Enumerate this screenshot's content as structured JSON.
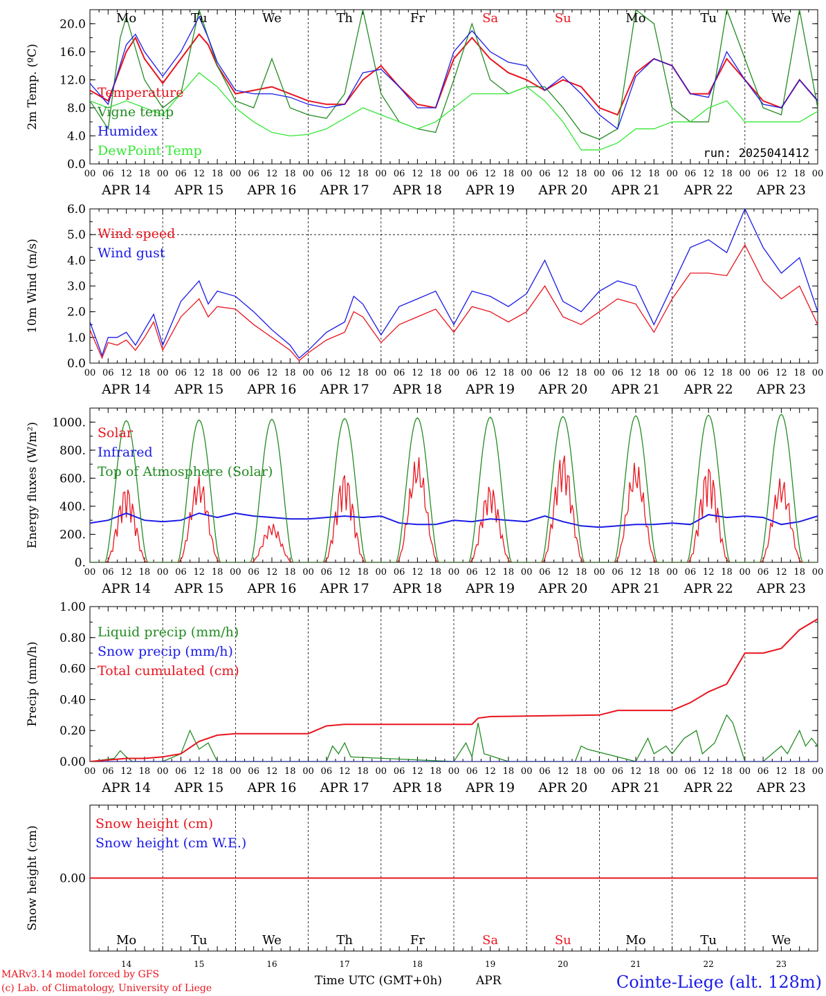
{
  "colors": {
    "red": "#e8141e",
    "blue": "#1a1ae6",
    "dgreen": "#228b22",
    "lgreen": "#33e833",
    "black": "#000000"
  },
  "days": [
    "Mo",
    "Tu",
    "We",
    "Th",
    "Fr",
    "Sa",
    "Su",
    "Mo",
    "Tu",
    "We"
  ],
  "day_colors": [
    "#000000",
    "#000000",
    "#000000",
    "#000000",
    "#000000",
    "#e8141e",
    "#e8141e",
    "#000000",
    "#000000",
    "#000000"
  ],
  "date_labels": [
    "APR 14",
    "APR 15",
    "APR 16",
    "APR 17",
    "APR 18",
    "APR 19",
    "APR 20",
    "APR 21",
    "APR 22",
    "APR 23"
  ],
  "day_numbers": [
    "14",
    "15",
    "16",
    "17",
    "18",
    "19",
    "20",
    "21",
    "22",
    "23"
  ],
  "hour_labels": [
    "00",
    "06",
    "12",
    "18"
  ],
  "footer": {
    "model": "MARv3.14 model forced by GFS",
    "lab": "(c) Lab. of Climatology, University of Liege",
    "xlabel": "Time UTC (GMT+0h)",
    "month": "APR",
    "station": "Cointe-Liege (alt. 128m)"
  },
  "chart_data": [
    {
      "type": "line",
      "ylabel": "2m Temp. (ºC)",
      "ylim": [
        0,
        22
      ],
      "yticks": [
        "0.0",
        "4.0",
        "8.0",
        "12.0",
        "16.0",
        "20.0"
      ],
      "ytick_values": [
        0,
        4,
        8,
        12,
        16,
        20
      ],
      "annotation": "run: 2025041412",
      "x_unit": "hours since APR 14 00 UTC",
      "series": [
        {
          "name": "Temperature",
          "color": "#e8141e",
          "x": [
            0,
            6,
            12,
            15,
            18,
            24,
            30,
            36,
            39,
            42,
            48,
            54,
            60,
            66,
            72,
            78,
            84,
            90,
            96,
            102,
            108,
            114,
            120,
            126,
            132,
            138,
            144,
            150,
            156,
            162,
            168,
            174,
            180,
            186,
            192,
            198,
            204,
            210,
            216,
            222,
            228,
            234,
            240
          ],
          "y": [
            10.5,
            9,
            16,
            18,
            15,
            11.5,
            15,
            18.5,
            17,
            14,
            10,
            10.5,
            11,
            10,
            9,
            8.5,
            8.5,
            12,
            14,
            11,
            8.5,
            8,
            15,
            18,
            15,
            13,
            12,
            10.5,
            12,
            11,
            8,
            7,
            13,
            15,
            14,
            10,
            10,
            15,
            12,
            9,
            8,
            12,
            9
          ]
        },
        {
          "name": "Vigne temp",
          "color": "#228b22",
          "x": [
            0,
            6,
            10,
            12,
            18,
            24,
            30,
            36,
            42,
            48,
            54,
            60,
            66,
            72,
            78,
            84,
            90,
            96,
            102,
            108,
            114,
            120,
            126,
            132,
            138,
            144,
            150,
            156,
            162,
            168,
            174,
            180,
            186,
            192,
            198,
            204,
            210,
            216,
            222,
            228,
            234,
            240
          ],
          "y": [
            9,
            5,
            18,
            21,
            12,
            8,
            10,
            22,
            14,
            9,
            8,
            15,
            8,
            7,
            6.5,
            10,
            22,
            10,
            6,
            5,
            4.5,
            12,
            20,
            12,
            10,
            11,
            11,
            8,
            4.5,
            3.5,
            5,
            22,
            20,
            8,
            6,
            6,
            22,
            15,
            8,
            7,
            22,
            8
          ]
        },
        {
          "name": "Humidex",
          "color": "#1a1ae6",
          "x": [
            0,
            6,
            12,
            15,
            18,
            24,
            30,
            36,
            39,
            42,
            48,
            54,
            60,
            66,
            72,
            78,
            84,
            90,
            96,
            102,
            108,
            114,
            120,
            126,
            132,
            138,
            144,
            150,
            156,
            162,
            168,
            174,
            180,
            186,
            192,
            198,
            204,
            210,
            216,
            222,
            228,
            234,
            240
          ],
          "y": [
            11.5,
            8.5,
            17,
            18.5,
            16,
            12.5,
            16,
            21,
            18,
            14.5,
            10.5,
            10,
            10,
            9.5,
            8.5,
            8,
            8.5,
            13,
            13.5,
            11,
            8,
            8,
            16,
            19,
            16,
            14.5,
            14,
            10.5,
            12.5,
            10,
            7,
            5,
            12.5,
            15,
            14,
            10,
            9.5,
            16,
            12,
            8.5,
            8,
            12,
            9
          ]
        },
        {
          "name": "DewPoint Temp",
          "color": "#33e833",
          "x": [
            0,
            6,
            12,
            18,
            24,
            30,
            36,
            42,
            48,
            54,
            60,
            66,
            72,
            78,
            84,
            90,
            96,
            102,
            108,
            114,
            120,
            126,
            132,
            138,
            144,
            150,
            156,
            162,
            168,
            174,
            180,
            186,
            192,
            198,
            204,
            210,
            216,
            222,
            228,
            234,
            240
          ],
          "y": [
            9,
            8,
            9,
            8,
            7,
            10,
            13,
            11,
            8,
            6,
            4.5,
            4,
            4.2,
            5,
            6.5,
            8,
            7,
            6,
            5,
            6,
            8,
            10,
            10,
            10,
            11,
            9,
            6,
            2,
            2,
            3,
            5,
            5,
            6,
            6,
            8,
            9,
            6,
            6,
            6,
            6,
            7.5
          ]
        }
      ]
    },
    {
      "type": "line",
      "ylabel": "10m Wind (m/s)",
      "ylim": [
        0,
        6
      ],
      "yticks": [
        "0.0",
        "1.0",
        "2.0",
        "3.0",
        "4.0",
        "5.0",
        "6.0"
      ],
      "ytick_values": [
        0,
        1,
        2,
        3,
        4,
        5,
        6
      ],
      "reference_line": 5,
      "series": [
        {
          "name": "Wind speed",
          "color": "#e8141e",
          "x": [
            0,
            4,
            6,
            9,
            12,
            15,
            18,
            21,
            24,
            30,
            36,
            39,
            42,
            48,
            54,
            60,
            66,
            69,
            72,
            78,
            84,
            87,
            90,
            96,
            102,
            108,
            114,
            120,
            126,
            132,
            138,
            144,
            150,
            156,
            162,
            168,
            174,
            180,
            186,
            192,
            198,
            204,
            210,
            216,
            222,
            228,
            234,
            240
          ],
          "y": [
            1.3,
            0.2,
            0.8,
            0.7,
            0.9,
            0.5,
            1.0,
            1.6,
            0.5,
            1.8,
            2.5,
            1.8,
            2.2,
            2.1,
            1.5,
            1.0,
            0.5,
            0.1,
            0.4,
            0.9,
            1.2,
            2.0,
            1.8,
            0.8,
            1.5,
            1.8,
            2.1,
            1.2,
            2.2,
            2.0,
            1.6,
            2.0,
            3.0,
            1.8,
            1.5,
            2.0,
            2.5,
            2.3,
            1.2,
            2.5,
            3.5,
            3.5,
            3.4,
            4.6,
            3.2,
            2.5,
            3.0,
            1.5
          ]
        },
        {
          "name": "Wind gust",
          "color": "#1a1ae6",
          "x": [
            0,
            4,
            6,
            9,
            12,
            15,
            18,
            21,
            24,
            30,
            36,
            39,
            42,
            48,
            54,
            60,
            66,
            69,
            72,
            78,
            84,
            87,
            90,
            96,
            102,
            108,
            114,
            120,
            126,
            132,
            138,
            144,
            150,
            156,
            162,
            168,
            174,
            180,
            186,
            192,
            198,
            204,
            210,
            216,
            222,
            228,
            234,
            240
          ],
          "y": [
            1.6,
            0.3,
            1.0,
            1.0,
            1.2,
            0.7,
            1.3,
            1.9,
            0.7,
            2.4,
            3.2,
            2.3,
            2.8,
            2.6,
            2.0,
            1.3,
            0.7,
            0.2,
            0.5,
            1.2,
            1.6,
            2.6,
            2.3,
            1.1,
            2.2,
            2.5,
            2.8,
            1.5,
            2.8,
            2.6,
            2.2,
            2.7,
            4.0,
            2.4,
            2.0,
            2.8,
            3.2,
            3.0,
            1.5,
            3.0,
            4.5,
            4.8,
            4.3,
            6.0,
            4.5,
            3.5,
            4.1,
            2.0
          ]
        }
      ]
    },
    {
      "type": "line",
      "ylabel": "Energy fluxes (W/m²)",
      "ylim": [
        0,
        1100
      ],
      "yticks": [
        "0.",
        "200.",
        "400.",
        "600.",
        "800.",
        "1000."
      ],
      "ytick_values": [
        0,
        200,
        400,
        600,
        800,
        1000
      ],
      "series": [
        {
          "name": "Solar",
          "color": "#e8141e",
          "peaks": [
            550,
            620,
            280,
            650,
            760,
            560,
            790,
            720,
            700,
            610
          ]
        },
        {
          "name": "Infrared",
          "color": "#1a1ae6",
          "x": [
            0,
            6,
            12,
            18,
            24,
            30,
            36,
            42,
            48,
            54,
            60,
            66,
            72,
            78,
            84,
            90,
            96,
            102,
            108,
            114,
            120,
            126,
            132,
            138,
            144,
            150,
            156,
            162,
            168,
            174,
            180,
            186,
            192,
            198,
            204,
            210,
            216,
            222,
            228,
            234,
            240
          ],
          "y": [
            280,
            300,
            350,
            300,
            290,
            300,
            350,
            320,
            350,
            330,
            320,
            310,
            310,
            320,
            330,
            320,
            330,
            280,
            270,
            270,
            300,
            290,
            310,
            300,
            290,
            330,
            290,
            260,
            250,
            260,
            270,
            270,
            280,
            270,
            340,
            320,
            330,
            320,
            270,
            290,
            330
          ]
        },
        {
          "name": "Top of Atmosphere (Solar)",
          "color": "#228b22",
          "peaks": [
            1010,
            1015,
            1020,
            1025,
            1030,
            1035,
            1040,
            1045,
            1050,
            1055
          ]
        }
      ]
    },
    {
      "type": "line",
      "ylabel": "Precip (mm/h)",
      "ylim": [
        0,
        1.0
      ],
      "yticks": [
        "0.00",
        "0.20",
        "0.40",
        "0.60",
        "0.80",
        "1.00"
      ],
      "ytick_values": [
        0,
        0.2,
        0.4,
        0.6,
        0.8,
        1.0
      ],
      "series": [
        {
          "name": "Liquid precip (mm/h)",
          "color": "#228b22",
          "x": [
            0,
            8,
            10,
            12,
            14,
            24,
            30,
            33,
            36,
            39,
            42,
            48,
            78,
            80,
            82,
            84,
            86,
            120,
            124,
            126,
            128,
            130,
            138,
            160,
            162,
            164,
            180,
            184,
            186,
            190,
            192,
            196,
            200,
            202,
            206,
            210,
            212,
            216,
            222,
            228,
            230,
            234,
            236,
            238,
            240
          ],
          "y": [
            0,
            0.02,
            0.07,
            0.03,
            0,
            0,
            0.05,
            0.2,
            0.08,
            0.12,
            0,
            0,
            0,
            0.1,
            0.05,
            0.12,
            0.03,
            0,
            0.12,
            0.03,
            0.25,
            0.05,
            0,
            0,
            0.1,
            0.08,
            0,
            0.15,
            0.05,
            0.1,
            0.05,
            0.15,
            0.2,
            0.05,
            0.12,
            0.3,
            0.25,
            0,
            0,
            0.1,
            0.05,
            0.2,
            0.1,
            0.15,
            0.1
          ]
        },
        {
          "name": "Snow precip (mm/h)",
          "color": "#1a1ae6",
          "x": [
            0,
            240
          ],
          "y": [
            0,
            0
          ]
        },
        {
          "name": "Total cumulated (cm)",
          "color": "#e8141e",
          "x": [
            0,
            6,
            12,
            18,
            24,
            30,
            36,
            42,
            48,
            72,
            78,
            84,
            126,
            128,
            132,
            168,
            174,
            192,
            198,
            204,
            210,
            216,
            222,
            228,
            234,
            240
          ],
          "y": [
            0,
            0.01,
            0.02,
            0.02,
            0.03,
            0.05,
            0.13,
            0.17,
            0.18,
            0.18,
            0.23,
            0.24,
            0.24,
            0.28,
            0.29,
            0.3,
            0.33,
            0.33,
            0.38,
            0.45,
            0.5,
            0.7,
            0.7,
            0.73,
            0.85,
            0.92
          ]
        }
      ]
    },
    {
      "type": "line",
      "ylabel": "Snow height (cm)",
      "ylim": [
        -1,
        1
      ],
      "yticks": [
        "0.00"
      ],
      "ytick_values": [
        0
      ],
      "series": [
        {
          "name": "Snow height (cm)",
          "color": "#e8141e",
          "x": [
            0,
            240
          ],
          "y": [
            0,
            0
          ]
        },
        {
          "name": "Snow height (cm W.E.)",
          "color": "#1a1ae6",
          "x": [],
          "y": []
        }
      ]
    }
  ]
}
